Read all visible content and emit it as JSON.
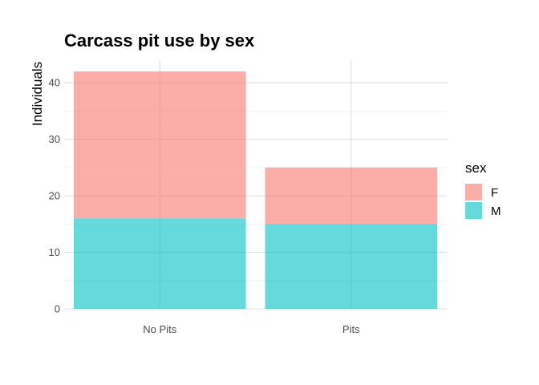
{
  "chart_data": {
    "type": "bar",
    "stacked": true,
    "title": "Carcass pit use by sex",
    "xlabel": "",
    "ylabel": "Individuals",
    "categories": [
      "No Pits",
      "Pits"
    ],
    "series": [
      {
        "name": "F",
        "values": [
          26,
          10
        ],
        "color": "#F8766D"
      },
      {
        "name": "M",
        "values": [
          16,
          15
        ],
        "color": "#00BFC4"
      }
    ],
    "stack_order": [
      "M",
      "F"
    ],
    "ylim": [
      0,
      44
    ],
    "yticks": [
      0,
      10,
      20,
      30,
      40
    ],
    "ytick_labels": [
      "0",
      "10",
      "20",
      "30",
      "40"
    ],
    "y_minor_gridlines": [
      5,
      15,
      25,
      35
    ],
    "grid": true,
    "bar_opacity": 0.6,
    "legend": {
      "title": "sex",
      "placement": "right",
      "entries": [
        "F",
        "M"
      ]
    }
  }
}
